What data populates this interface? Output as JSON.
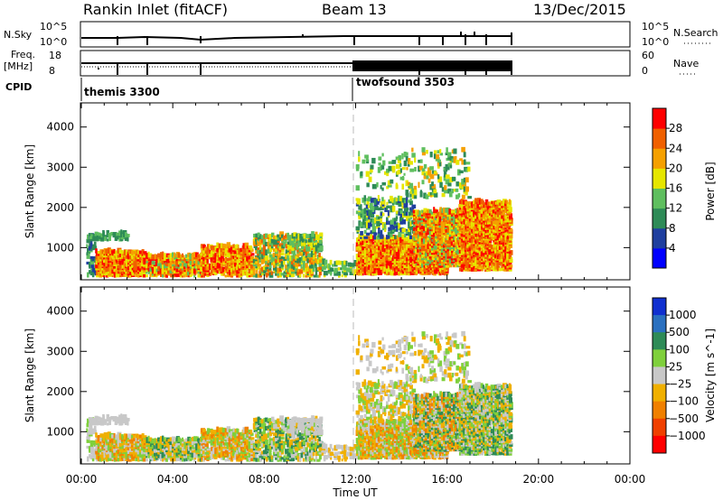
{
  "header": {
    "title": "Rankin Inlet (fitACF)",
    "beam": "Beam 13",
    "date": "13/Dec/2015"
  },
  "strips": {
    "nsky": {
      "label": "N.Sky",
      "ticks": [
        "10^5",
        "10^0"
      ],
      "right_label": "N.Search",
      "right_ticks": [
        "10^5",
        "10^0"
      ]
    },
    "freq": {
      "label_line1": "Freq.",
      "label_line2": "[MHz]",
      "ticks": [
        "18",
        "8"
      ],
      "right_label": "Nave",
      "right_ticks": [
        "60",
        "0"
      ]
    },
    "cpid": {
      "label": "CPID",
      "modes": [
        {
          "name": "themis 3300",
          "start_hour": 0
        },
        {
          "name": "twofsound 3503",
          "start_hour": 12
        }
      ]
    }
  },
  "chart_data": [
    {
      "type": "heatmap",
      "panel": "power",
      "ylabel": "Slant Range [km]",
      "y_ticks": [
        "1000",
        "2000",
        "3000",
        "4000"
      ],
      "ylim": [
        200,
        4600
      ],
      "colorbar": {
        "label": "Power [dB]",
        "ticks": [
          "4",
          "8",
          "12",
          "16",
          "20",
          "24",
          "28"
        ],
        "range": [
          0,
          30
        ],
        "colors": [
          "#0000ff",
          "#1f3f9f",
          "#2e8b57",
          "#5fbf5f",
          "#e6e600",
          "#f5a000",
          "#f06000",
          "#ff0000"
        ]
      },
      "data_extent_hours": [
        0,
        18.9
      ],
      "noted_features": [
        {
          "range_km": [
            250,
            1300
          ],
          "hours": [
            0.5,
            10.5
          ],
          "level": "high"
        },
        {
          "range_km": [
            400,
            2000
          ],
          "hours": [
            12,
            18.8
          ],
          "level": "high"
        }
      ]
    },
    {
      "type": "heatmap",
      "panel": "velocity",
      "ylabel": "Slant Range [km]",
      "y_ticks": [
        "1000",
        "2000",
        "3000",
        "4000"
      ],
      "ylim": [
        200,
        4600
      ],
      "colorbar": {
        "label": "Velocity [m s^-1]",
        "ticks": [
          "1000",
          "500",
          "100",
          "25",
          "−25",
          "−100",
          "−500",
          "−1000"
        ],
        "colors": [
          "#1030d0",
          "#2a70c0",
          "#2e8b57",
          "#7fd03c",
          "#c8c8c8",
          "#f0b000",
          "#f08000",
          "#f04000",
          "#ff0000"
        ]
      },
      "data_extent_hours": [
        0,
        18.9
      ]
    }
  ],
  "x_axis": {
    "label": "Time UT",
    "ticks": [
      "00:00",
      "04:00",
      "08:00",
      "12:00",
      "16:00",
      "20:00",
      "00:00"
    ]
  }
}
